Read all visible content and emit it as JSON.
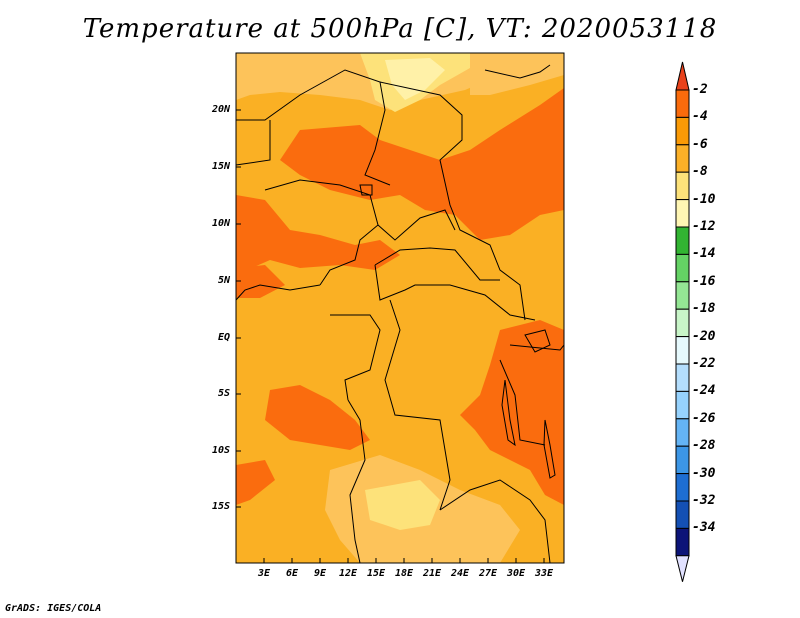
{
  "title": "Temperature at 500hPa [C], VT: 2020053118",
  "credit": "GrADS: IGES/COLA",
  "map": {
    "lat_labels": [
      "20N",
      "15N",
      "10N",
      "5N",
      "EQ",
      "5S",
      "10S",
      "15S"
    ],
    "lon_labels": [
      "3E",
      "6E",
      "9E",
      "12E",
      "15E",
      "18E",
      "21E",
      "24E",
      "27E",
      "30E",
      "33E"
    ]
  },
  "colorbar": {
    "labels": [
      "-2",
      "-4",
      "-6",
      "-8",
      "-10",
      "-12",
      "-14",
      "-16",
      "-18",
      "-20",
      "-22",
      "-24",
      "-26",
      "-28",
      "-30",
      "-32",
      "-34"
    ],
    "colors": [
      "#e8421c",
      "#fa6b0c",
      "#fa9a06",
      "#fbb028",
      "#fde27a",
      "#fff6b4",
      "#32b432",
      "#64d264",
      "#94e694",
      "#c8f5c8",
      "#e6f9fd",
      "#b4defd",
      "#96d2fd",
      "#64b4f5",
      "#3c96e6",
      "#1e6ed2",
      "#1450b4",
      "#0c1478",
      "#e1e1ff"
    ]
  },
  "colors": {
    "bg": "#fab024",
    "warm": "#fa6c0e",
    "light": "#fdc35a",
    "pale": "#fde27a",
    "palest": "#fff1a8"
  }
}
